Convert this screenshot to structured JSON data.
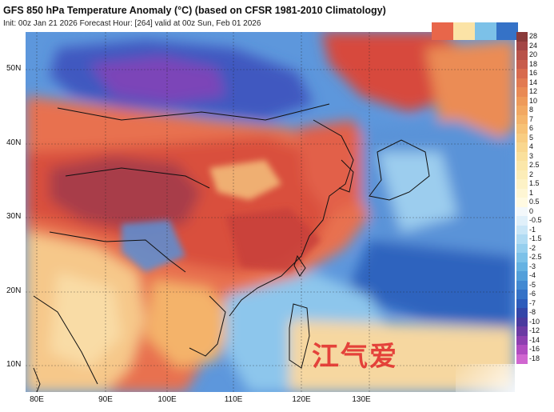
{
  "title": "GFS 850 hPa Temperature Anomaly (°C) (based on CFSR 1981-2010 Climatology)",
  "subtitle": "Init: 00z Jan 21 2026   Forecast Hour: [264]   valid at 00z Sun, Feb 01 2026",
  "latitudes": [
    "50N",
    "40N",
    "30N",
    "20N",
    "10N"
  ],
  "longitudes": [
    "80E",
    "90E",
    "100E",
    "110E",
    "120E",
    "130E"
  ],
  "colorbar": {
    "labels": [
      "28",
      "24",
      "20",
      "18",
      "16",
      "14",
      "12",
      "10",
      "8",
      "7",
      "6",
      "5",
      "4",
      "3",
      "2.5",
      "2",
      "1.5",
      "1",
      "0.5",
      "0",
      "-0.5",
      "-1",
      "-1.5",
      "-2",
      "-2.5",
      "-3",
      "-4",
      "-5",
      "-6",
      "-7",
      "-8",
      "-10",
      "-12",
      "-14",
      "-16",
      "-18"
    ],
    "colors": [
      "#8a3a3a",
      "#a34646",
      "#b8524a",
      "#c85c4c",
      "#d86a4e",
      "#e27a52",
      "#e98a55",
      "#ee9a5a",
      "#f2a862",
      "#f5b56b",
      "#f7c276",
      "#f8cd82",
      "#f9d78f",
      "#fae09c",
      "#fbe7aa",
      "#fcedb8",
      "#fdf2c6",
      "#fef6d4",
      "#fffae2",
      "#f3f8fb",
      "#e0f0fa",
      "#c9e6f7",
      "#b0dbf3",
      "#96cfee",
      "#7cc1e8",
      "#65b2e2",
      "#529fda",
      "#4289d2",
      "#3572c7",
      "#2d5cbb",
      "#3346a8",
      "#4a3a9e",
      "#6b3aa3",
      "#8d3fb0",
      "#b04cc0",
      "#d066d0"
    ]
  },
  "top_legend_colors": [
    "#e8664a",
    "#fbe3a6",
    "#7cc1e8",
    "#3572c7"
  ],
  "watermark": "江气爱"
}
